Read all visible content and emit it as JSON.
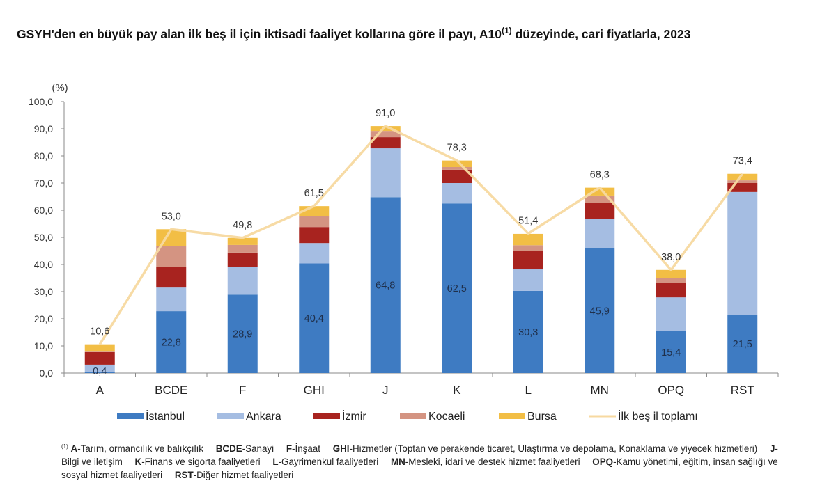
{
  "title": {
    "main": "GSYH'den en büyük pay alan ilk beş il için iktisadi faaliyet kollarına göre il payı, A10",
    "sup": "(1)",
    "rest": " düzeyinde, cari fiyatlarla, 2023"
  },
  "chart_data": {
    "type": "bar",
    "stacked": true,
    "ylabel": "(%)",
    "ylim": [
      0,
      100
    ],
    "yticks": [
      "0,0",
      "10,0",
      "20,0",
      "30,0",
      "40,0",
      "50,0",
      "60,0",
      "70,0",
      "80,0",
      "90,0",
      "100,0"
    ],
    "categories": [
      "A",
      "BCDE",
      "F",
      "GHI",
      "J",
      "K",
      "L",
      "MN",
      "OPQ",
      "RST"
    ],
    "series": [
      {
        "name": "İstanbul",
        "color": "#3e7bc2",
        "values": [
          0.4,
          22.8,
          28.9,
          40.4,
          64.8,
          62.5,
          30.3,
          45.9,
          15.4,
          21.5
        ],
        "labels": [
          "0,4",
          "22,8",
          "28,9",
          "40,4",
          "64,8",
          "62,5",
          "30,3",
          "45,9",
          "15,4",
          "21,5"
        ]
      },
      {
        "name": "Ankara",
        "color": "#a5bde2",
        "values": [
          2.7,
          8.7,
          10.3,
          7.5,
          18.0,
          7.5,
          7.9,
          11.0,
          12.5,
          45.2
        ]
      },
      {
        "name": "İzmir",
        "color": "#a8231f",
        "values": [
          4.6,
          7.7,
          5.2,
          5.9,
          4.1,
          4.9,
          6.8,
          5.9,
          5.2,
          3.3
        ]
      },
      {
        "name": "Kocaeli",
        "color": "#d49482",
        "values": [
          0.2,
          7.5,
          2.8,
          4.1,
          2.3,
          1.0,
          2.1,
          2.6,
          2.0,
          1.0
        ]
      },
      {
        "name": "Bursa",
        "color": "#f2be45",
        "values": [
          2.7,
          6.3,
          2.6,
          3.6,
          1.8,
          2.4,
          4.2,
          2.9,
          2.9,
          2.4
        ]
      }
    ],
    "line": {
      "name": "İlk beş il toplamı",
      "color": "#f7d9a0",
      "values": [
        10.6,
        53.0,
        49.8,
        61.5,
        91.0,
        78.3,
        51.4,
        68.3,
        38.0,
        73.4
      ],
      "labels": [
        "10,6",
        "53,0",
        "49,8",
        "61,5",
        "91,0",
        "78,3",
        "51,4",
        "68,3",
        "38,0",
        "73,4"
      ]
    },
    "legend_position": "bottom",
    "grid": false
  },
  "footnote": {
    "marker": "(1)",
    "items": [
      {
        "code": "A",
        "text": "-Tarım, ormancılık ve balıkçılık"
      },
      {
        "code": "BCDE",
        "text": "-Sanayi"
      },
      {
        "code": "F",
        "text": "-İnşaat"
      },
      {
        "code": "GHI",
        "text": "-Hizmetler (Toptan ve perakende ticaret, Ulaştırma ve depolama, Konaklama ve yiyecek hizmetleri)"
      },
      {
        "code": "J",
        "text": "-Bilgi ve iletişim"
      },
      {
        "code": "K",
        "text": "-Finans ve sigorta faaliyetleri"
      },
      {
        "code": "L",
        "text": "-Gayrimenkul faaliyetleri"
      },
      {
        "code": "MN",
        "text": "-Mesleki, idari ve destek hizmet faaliyetleri"
      },
      {
        "code": "OPQ",
        "text": "-Kamu yönetimi, eğitim, insan sağlığı ve sosyal hizmet faaliyetleri"
      },
      {
        "code": "RST",
        "text": "-Diğer hizmet faaliyetleri"
      }
    ]
  }
}
